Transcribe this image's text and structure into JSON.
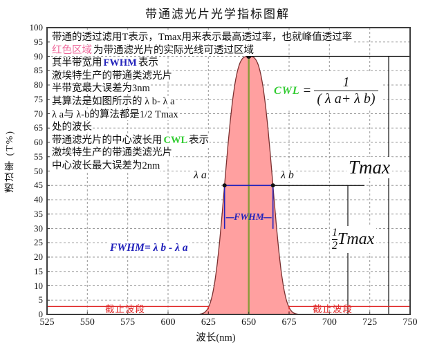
{
  "title": "带通滤光片光学指标图解",
  "colors": {
    "default": "#111111",
    "pink": "#ee6699",
    "blue": "#2222bb",
    "green": "#33cc33",
    "red": "#e02828",
    "olive": "#8a9a3a",
    "curve_fill": "#ffa0a0",
    "curve_stroke": "#7a3030",
    "grid": "#989898",
    "frame": "#3c3c3c"
  },
  "axes": {
    "x_label": "波长(nm)",
    "y_label": "透过率 (T%)",
    "x_ticks": [
      525,
      550,
      575,
      600,
      625,
      650,
      675,
      700,
      725,
      750
    ],
    "y_ticks": [
      0,
      5,
      10,
      15,
      20,
      25,
      30,
      35,
      40,
      45,
      50,
      55,
      60,
      65,
      70,
      75,
      80,
      85,
      90,
      95,
      100
    ]
  },
  "note_lines": [
    [
      [
        "带通的透过滤用T表示，Tmax用来表示最高透过率，也就峰值透过率",
        "default"
      ]
    ],
    [
      [
        "红色区域",
        "pink"
      ],
      [
        "为带通滤光片的实际光线可透过区域",
        "default"
      ]
    ],
    [
      [
        "其半带宽用",
        "default"
      ],
      [
        "FWHM",
        "blue"
      ],
      [
        "表示",
        "default"
      ]
    ],
    [
      [
        "激埃特生产的带通类滤光片",
        "default"
      ]
    ],
    [
      [
        "半带宽最大误差为3nm",
        "default"
      ]
    ],
    [
      [
        "其算法是如图所示的 λ b- λ a",
        "default"
      ]
    ],
    [
      [
        "λ a与 λ-b的算法都是1/2 Tmax",
        "default"
      ]
    ],
    [
      [
        "处的波长",
        "default"
      ]
    ],
    [
      [
        "带通滤光片的中心波长用",
        "default"
      ],
      [
        "CWL",
        "green"
      ],
      [
        "表示",
        "default"
      ]
    ],
    [
      [
        "激埃特生产的带通类滤光片",
        "default"
      ]
    ],
    [
      [
        "中心波长最大误差为2nm",
        "default"
      ]
    ]
  ],
  "labels": {
    "lambda_a": "λ a",
    "lambda_b": "λ b",
    "fwhm_bracket": "FWHM",
    "fwhm_formula": "FWHM= λ b - λ a",
    "cwl": "CWL",
    "equals": "=",
    "cwl_numerator": "1",
    "cwl_denominator": "( λ a+ λ b)",
    "tmax": "Tmax",
    "half_numerator": "1",
    "half_denominator": "2",
    "half_tmax": "Tmax",
    "cutoff_left": "截止波段",
    "cutoff_right": "截止波段"
  },
  "chart_data": {
    "type": "area",
    "title": "带通滤光片光学指标图解",
    "xlabel": "波长(nm)",
    "ylabel": "透过率 (T%)",
    "xlim": [
      525,
      750
    ],
    "ylim": [
      0,
      100
    ],
    "x_tick_step": 25,
    "y_tick_step": 5,
    "grid": "dashed",
    "legend": "none",
    "curve": {
      "name": "bandpass-transmission",
      "shape": "super-gaussian",
      "cwl_nm": 650,
      "tmax_percent": 90,
      "fwhm_nm": 30,
      "lambda_a_nm": 635,
      "lambda_b_nm": 665,
      "half_tmax_percent": 45,
      "exponent": 3.23,
      "width_nm": 16.8
    },
    "key_points": [
      {
        "x_nm": 650,
        "y_percent": 90,
        "label": "peak Tmax"
      },
      {
        "x_nm": 635,
        "y_percent": 45,
        "label": "λa"
      },
      {
        "x_nm": 665,
        "y_percent": 45,
        "label": "λb"
      }
    ],
    "cutoff_level_percent": 2.8,
    "cutoff_bands_nm": [
      [
        525,
        625
      ],
      [
        675,
        750
      ]
    ]
  }
}
